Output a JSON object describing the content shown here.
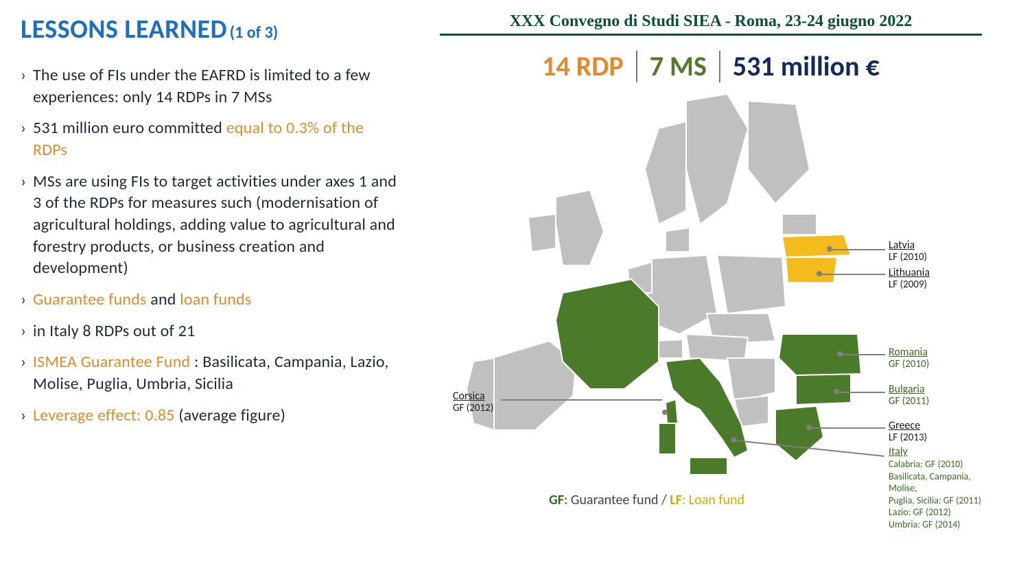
{
  "title": {
    "main": "LESSONS LEARNED",
    "sub": "(1 of 3)"
  },
  "bullets": [
    {
      "pre": "The use of FIs under the EAFRD is limited to a few experiences: only 14 RDPs in 7 MSs"
    },
    {
      "pre": "531 million euro committed ",
      "hi": "equal to 0.3% of the RDPs"
    },
    {
      "pre": "MSs are using FIs to target activities under axes 1 and 3 of the RDPs for measures such (modernisation of agricultural holdings, adding value to agricultural and forestry products, or business creation and development)"
    },
    {
      "hi": "Guarantee funds",
      "mid": " and ",
      "hi2": "loan funds"
    },
    {
      "pre": "in Italy 8 RDPs out of 21"
    },
    {
      "hi": "ISMEA Guarantee Fund",
      "post": " : Basilicata, Campania, Lazio, Molise, Puglia, Umbria, Sicilia"
    },
    {
      "hi": "Leverage effect: 0.85",
      "post": " (average figure)"
    }
  ],
  "header_right": "XXX Convegno di Studi SIEA - Roma, 23-24 giugno 2022",
  "stats": {
    "rdp": "14 RDP",
    "ms": "7 MS",
    "eur": "531 million €"
  },
  "map": {
    "bg_fill": "#c0c0c0",
    "bg_stroke": "#ffffff",
    "green": "#4a7a2a",
    "yellow": "#f3bb1c",
    "countries": {
      "corsica": {
        "name": "Corsica",
        "sub": "GF (2012)",
        "cls": "c-black"
      },
      "latvia": {
        "name": "Latvia",
        "sub": "LF (2010)",
        "cls": "c-black"
      },
      "lithuania": {
        "name": "Lithuania",
        "sub": "LF (2009)",
        "cls": "c-black"
      },
      "romania": {
        "name": "Romania",
        "sub": "GF (2010)",
        "cls": "c-green"
      },
      "bulgaria": {
        "name": "Bulgaria",
        "sub": "GF (2011)",
        "cls": "c-green"
      },
      "greece": {
        "name": "Greece",
        "sub": "LF (2013)",
        "cls": "c-black"
      },
      "italy": {
        "name": "Italy",
        "cls": "c-green",
        "detail": "Calabria: GF (2010)\nBasilicata, Campania, Molise,\nPuglia, Sicilia: GF (2011)\nLazio: GF (2012)\nUmbria: GF (2014)"
      }
    }
  },
  "legend": {
    "gf": "GF",
    "gfdesc": ": Guarantee fund / ",
    "lf": "LF",
    "lfdesc": ": Loan fund"
  }
}
